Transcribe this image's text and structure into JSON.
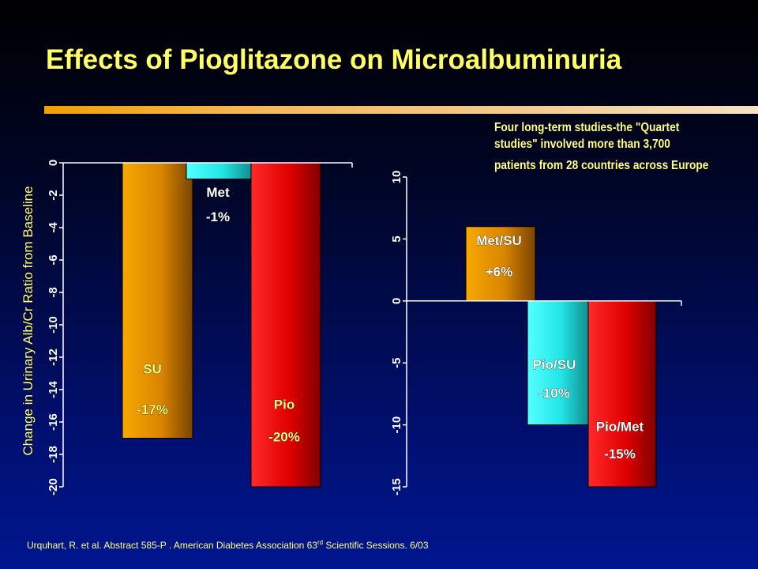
{
  "title": "Effects of Pioglitazone on Microalbuminuria",
  "note": {
    "line1": "Four long-term studies-the \"Quartet",
    "line2": "studies\" involved more than 3,700",
    "line3": "patients from 28 countries across Europe"
  },
  "footer": {
    "text": "Urquhart, R. et al. Abstract 585-P . American Diabetes Association 63",
    "superscript": "rd",
    "text_after": " Scientific Sessions. 6/03"
  },
  "colors": {
    "title": "#ffff66",
    "label_yellow": "#ffff88",
    "label_white": "#ffffff",
    "orange": "#f0a000",
    "cyan": "#33ffff",
    "red": "#ff1a1a"
  },
  "chart_data": [
    {
      "type": "bar",
      "ylabel": "Change in Urinary Alb/Cr Ratio from Baseline",
      "ylim": [
        -20,
        0
      ],
      "yticks": [
        0,
        -2,
        -4,
        -6,
        -8,
        -10,
        -12,
        -14,
        -16,
        -18,
        -20
      ],
      "categories": [
        "SU",
        "Met",
        "Pio"
      ],
      "values": [
        -17,
        -1,
        -20
      ],
      "data_labels": [
        "-17%",
        "-1%",
        "-20%"
      ],
      "bar_colors": [
        "orange",
        "cyan",
        "red"
      ],
      "label_positions": [
        {
          "name_y": -13,
          "pct_y": -15.5
        },
        {
          "name_y": -2.1,
          "pct_y": -3.6
        },
        {
          "name_y": -15.2,
          "pct_y": -17.2
        }
      ]
    },
    {
      "type": "bar",
      "ylim": [
        -15,
        10
      ],
      "yticks": [
        10,
        5,
        0,
        -5,
        -10,
        -15
      ],
      "categories": [
        "Met/SU",
        "Pio/SU",
        "Pio/Met"
      ],
      "values": [
        6,
        -10,
        -15
      ],
      "data_labels": [
        "+6%",
        "-10%",
        "-15%"
      ],
      "bar_colors": [
        "orange",
        "cyan",
        "red"
      ],
      "label_positions": [
        {
          "name_y": 4.5,
          "pct_y": 2.0
        },
        {
          "name_y": -5.5,
          "pct_y": -7.8
        },
        {
          "name_y": -10.5,
          "pct_y": -12.7
        }
      ]
    }
  ]
}
